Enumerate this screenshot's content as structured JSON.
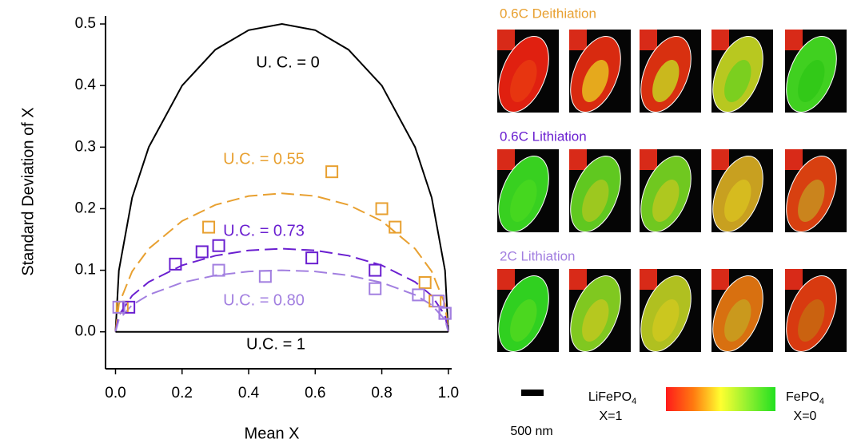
{
  "chart_data": {
    "type": "scatter",
    "x_label": "Mean X",
    "y_label": "Standard Deviation of X",
    "xlim": [
      -0.03,
      1.01
    ],
    "ylim": [
      -0.06,
      0.513
    ],
    "xticks": [
      {
        "value": 0,
        "label": "0.0"
      },
      0.2,
      0.4,
      0.6,
      0.8,
      {
        "value": 1,
        "label": "1.0"
      }
    ],
    "yticks": [
      {
        "value": 0,
        "label": "0.0"
      },
      0.1,
      0.2,
      0.3,
      0.4,
      0.5
    ],
    "x": [
      0,
      0.01,
      0.05,
      0.1,
      0.2,
      0.3,
      0.4,
      0.5,
      0.6,
      0.7,
      0.8,
      0.9,
      0.95,
      0.99,
      1
    ],
    "series": [
      {
        "name": "U. C. = 0",
        "color": "#000000",
        "dashed": false,
        "values": [
          0,
          0.0995,
          0.2179,
          0.3,
          0.4,
          0.4583,
          0.4899,
          0.5,
          0.4899,
          0.4583,
          0.4,
          0.3,
          0.2179,
          0.0995,
          0
        ]
      },
      {
        "name": "U.C. = 0.55",
        "color": "#e8a030",
        "dashed": true,
        "values": [
          0,
          0.0448,
          0.0981,
          0.135,
          0.18,
          0.2062,
          0.2205,
          0.225,
          0.2205,
          0.2062,
          0.18,
          0.135,
          0.0981,
          0.0448,
          0
        ]
      },
      {
        "name": "U.C. = 0.73",
        "color": "#6a1fd0",
        "dashed": true,
        "values": [
          0,
          0.0269,
          0.0588,
          0.081,
          0.108,
          0.1237,
          0.1323,
          0.135,
          0.1323,
          0.1237,
          0.108,
          0.081,
          0.0588,
          0.0269,
          0
        ]
      },
      {
        "name": "U.C. = 0.80",
        "color": "#a27fe0",
        "dashed": true,
        "values": [
          0,
          0.0199,
          0.0436,
          0.06,
          0.08,
          0.0917,
          0.098,
          0.1,
          0.098,
          0.0917,
          0.08,
          0.06,
          0.0436,
          0.0199,
          0
        ]
      },
      {
        "name": "U.C. = 1",
        "color": "#000000",
        "dashed": false,
        "values": [
          0,
          0,
          0,
          0,
          0,
          0,
          0,
          0,
          0,
          0,
          0,
          0,
          0,
          0,
          0
        ]
      }
    ],
    "points": [
      {
        "color": "#e8a030",
        "x": [
          0.02,
          0.28,
          0.65,
          0.8,
          0.84,
          0.93,
          0.96
        ],
        "values": [
          0.04,
          0.17,
          0.26,
          0.2,
          0.17,
          0.08,
          0.05
        ]
      },
      {
        "color": "#6a1fd0",
        "x": [
          0.04,
          0.18,
          0.26,
          0.31,
          0.59,
          0.78,
          0.99
        ],
        "values": [
          0.04,
          0.11,
          0.13,
          0.14,
          0.12,
          0.1,
          0.03
        ]
      },
      {
        "color": "#a27fe0",
        "x": [
          0.01,
          0.31,
          0.45,
          0.78,
          0.91,
          0.97,
          0.99
        ],
        "values": [
          0.04,
          0.1,
          0.09,
          0.07,
          0.06,
          0.05,
          0.03
        ]
      }
    ]
  },
  "image_panels": {
    "rows": [
      {
        "title": "0.6C Deithiation",
        "color": "#e8a030"
      },
      {
        "title": "0.6C Lithiation",
        "color": "#6a1fd0"
      },
      {
        "title": "2C Lithiation",
        "color": "#a27fe0"
      }
    ],
    "scale_bar": "500 nm",
    "colorbar": {
      "left_formula": "LiFePO",
      "left_subscript": "4",
      "left_value": "X=1",
      "right_formula": "FePO",
      "right_subscript": "4",
      "right_value": "X=0"
    }
  }
}
